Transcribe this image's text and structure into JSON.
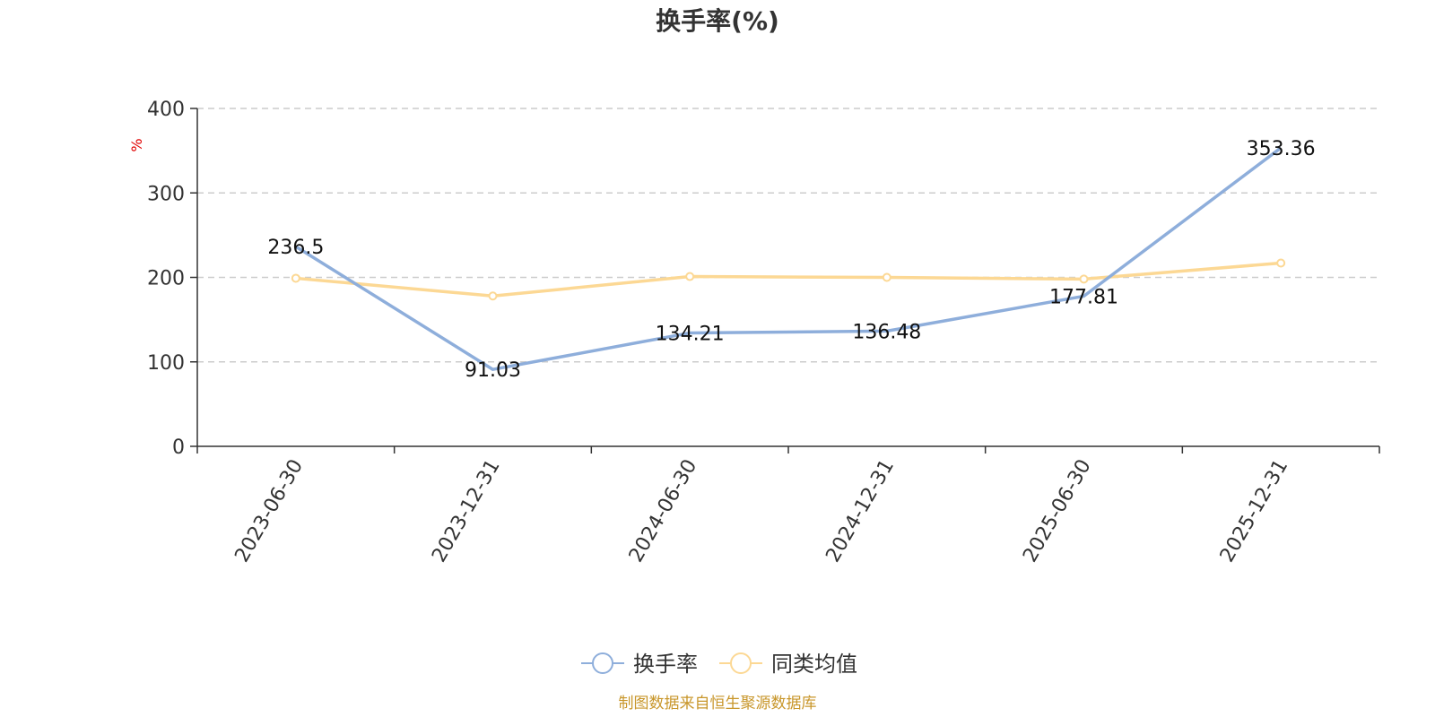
{
  "chart_data": {
    "type": "line",
    "title": "换手率(%)",
    "unit_label": "%",
    "categories": [
      "2023-06-30",
      "2023-12-31",
      "2024-06-30",
      "2024-12-31",
      "2025-06-30",
      "2025-12-31"
    ],
    "ylim": [
      0,
      400
    ],
    "yticks": [
      0,
      100,
      200,
      300,
      400
    ],
    "grid": true,
    "legend_position": "bottom-center",
    "series": [
      {
        "name": "换手率",
        "color": "#8eaedb",
        "values": [
          236.5,
          91.03,
          134.21,
          136.48,
          177.81,
          353.36
        ],
        "labels": [
          "236.5",
          "91.03",
          "134.21",
          "136.48",
          "177.81",
          "353.36"
        ]
      },
      {
        "name": "同类均值",
        "color": "#fcd894",
        "values": [
          199,
          178,
          201,
          200,
          198,
          217
        ]
      }
    ]
  },
  "footer": {
    "source": "制图数据来自恒生聚源数据库",
    "color": "#c8962a"
  }
}
